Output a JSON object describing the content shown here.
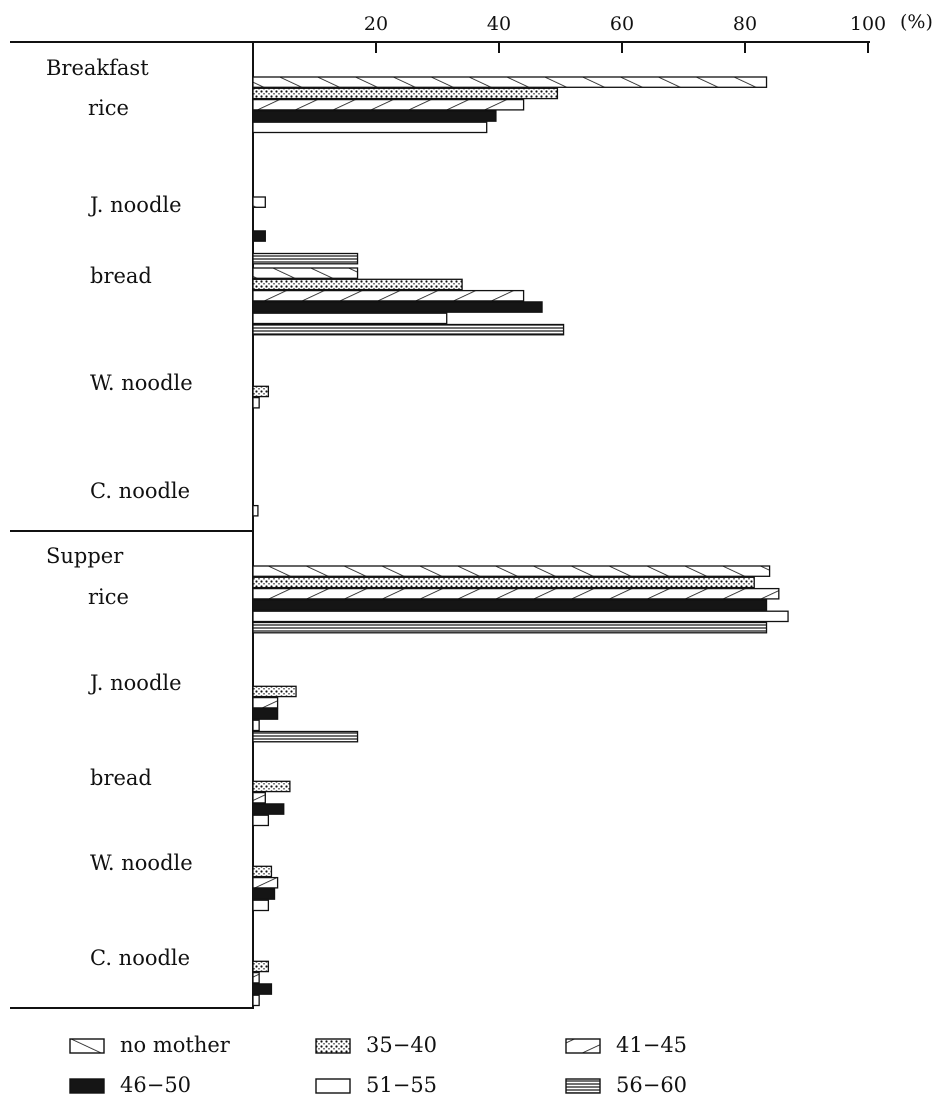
{
  "chart_data": {
    "type": "bar",
    "orientation": "horizontal",
    "x_unit": "(%)",
    "xlim": [
      0,
      100
    ],
    "x_ticks": [
      20,
      40,
      60,
      80,
      100
    ],
    "series": [
      {
        "name": "no mother",
        "pattern": "diagonal"
      },
      {
        "name": "35−40",
        "pattern": "dots"
      },
      {
        "name": "41−45",
        "pattern": "antidiagonal"
      },
      {
        "name": "46−50",
        "pattern": "solid"
      },
      {
        "name": "51−55",
        "pattern": "blank"
      },
      {
        "name": "56−60",
        "pattern": "horizontal"
      }
    ],
    "groups": [
      {
        "title": "Breakfast",
        "categories": [
          {
            "label": "rice",
            "values": [
              83.5,
              49.5,
              44,
              39.5,
              38,
              0
            ]
          },
          {
            "label": "J.  noodle",
            "values": [
              2,
              0,
              0,
              2,
              0,
              17
            ]
          },
          {
            "label": "bread",
            "values": [
              17,
              34,
              44,
              47,
              31.5,
              50.5
            ]
          },
          {
            "label": "W. noodle",
            "values": [
              0,
              2.5,
              1,
              0,
              0,
              0
            ]
          },
          {
            "label": "C.  noodle",
            "values": [
              0,
              0,
              0.8,
              0,
              0,
              0
            ]
          }
        ]
      },
      {
        "title": "Supper",
        "categories": [
          {
            "label": "rice",
            "values": [
              84,
              81.5,
              85.5,
              83.5,
              87,
              83.5
            ]
          },
          {
            "label": "J.  noodle",
            "values": [
              0,
              7,
              4,
              4,
              1,
              17
            ]
          },
          {
            "label": "bread",
            "values": [
              0,
              6,
              2,
              5,
              2.5,
              0
            ]
          },
          {
            "label": "W. noodle",
            "values": [
              0,
              3,
              4,
              3.5,
              2.5,
              0
            ]
          },
          {
            "label": "C.  noodle",
            "values": [
              0,
              2.5,
              1,
              3,
              1,
              0
            ]
          }
        ]
      }
    ],
    "grid": false,
    "legend_position": "bottom"
  }
}
